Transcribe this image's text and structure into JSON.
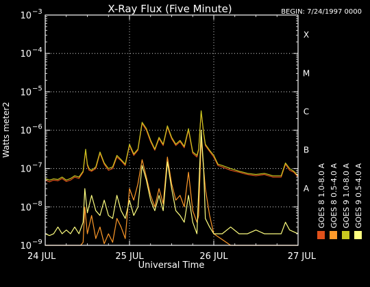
{
  "chart_data": {
    "type": "line",
    "title": "X-Ray Flux (Five Minute)",
    "begin_label": "BEGIN: 7/24/1997 0000",
    "xlabel": "Universal Time",
    "ylabel": "Watts meter2",
    "y_scale": "log",
    "ylim": [
      1e-09,
      0.001
    ],
    "xlim": [
      0,
      3
    ],
    "x_unit": "days since 1997-07-24 00:00 UT",
    "x_ticks": [
      {
        "x": 0,
        "label": "24 JUL"
      },
      {
        "x": 1,
        "label": "25 JUL"
      },
      {
        "x": 2,
        "label": "26 JUL"
      },
      {
        "x": 3,
        "label": "27 JUL"
      }
    ],
    "y_ticks": [
      {
        "exp": -9,
        "base": "10",
        "sup": "−9"
      },
      {
        "exp": -8,
        "base": "10",
        "sup": "−8"
      },
      {
        "exp": -7,
        "base": "10",
        "sup": "−7"
      },
      {
        "exp": -6,
        "base": "10",
        "sup": "−6"
      },
      {
        "exp": -5,
        "base": "10",
        "sup": "−5"
      },
      {
        "exp": -4,
        "base": "10",
        "sup": "−4"
      },
      {
        "exp": -3,
        "base": "10",
        "sup": "−3"
      }
    ],
    "flare_classes": [
      {
        "label": "A",
        "exp": -8
      },
      {
        "label": "B",
        "exp": -7
      },
      {
        "label": "C",
        "exp": -6
      },
      {
        "label": "M",
        "exp": -5
      },
      {
        "label": "X",
        "exp": -4
      }
    ],
    "vertical_dotted": [
      1,
      2
    ],
    "horizontal_dotted": [
      -8,
      -7,
      -6,
      -5,
      -4
    ],
    "series": [
      {
        "name": "GOES 8 1.0-8.0 A",
        "color": "#e0501a",
        "x": [
          0,
          0.05,
          0.1,
          0.15,
          0.2,
          0.25,
          0.3,
          0.35,
          0.4,
          0.45,
          0.48,
          0.5,
          0.52,
          0.55,
          0.6,
          0.65,
          0.7,
          0.75,
          0.8,
          0.85,
          0.9,
          0.95,
          1.0,
          1.05,
          1.1,
          1.15,
          1.2,
          1.25,
          1.3,
          1.35,
          1.4,
          1.45,
          1.5,
          1.55,
          1.6,
          1.65,
          1.7,
          1.75,
          1.8,
          1.82,
          1.85,
          1.88,
          1.9,
          1.95,
          2.0,
          2.05,
          2.1,
          2.2,
          2.3,
          2.4,
          2.5,
          2.6,
          2.7,
          2.8,
          2.85,
          2.9,
          2.95,
          3.0
        ],
        "y": [
          5e-08,
          4.5e-08,
          5e-08,
          4.8e-08,
          5.5e-08,
          4.6e-08,
          5e-08,
          6e-08,
          5.5e-08,
          8e-08,
          3e-07,
          1.2e-07,
          9e-08,
          8.5e-08,
          1e-07,
          2.5e-07,
          1.3e-07,
          9e-08,
          1e-07,
          2e-07,
          1.6e-07,
          1.2e-07,
          4e-07,
          2.2e-07,
          3e-07,
          1.5e-06,
          1e-06,
          5e-07,
          3e-07,
          6e-07,
          4e-07,
          1.2e-06,
          6e-07,
          4e-07,
          5e-07,
          3.5e-07,
          1e-06,
          2.5e-07,
          2e-07,
          3e-07,
          3e-06,
          8e-07,
          4e-07,
          2.8e-07,
          2e-07,
          1.2e-07,
          1.1e-07,
          9e-08,
          8e-08,
          7e-08,
          6.5e-08,
          7e-08,
          6e-08,
          6e-08,
          1.3e-07,
          9e-08,
          8e-08,
          6e-08
        ]
      },
      {
        "name": "GOES 8 0.5-4.0 A",
        "color": "#ff9a2a",
        "x": [
          0,
          0.3,
          0.42,
          0.45,
          0.47,
          0.5,
          0.55,
          0.6,
          0.65,
          0.7,
          0.75,
          0.8,
          0.85,
          0.9,
          0.95,
          1.0,
          1.05,
          1.1,
          1.15,
          1.2,
          1.25,
          1.3,
          1.35,
          1.4,
          1.45,
          1.5,
          1.55,
          1.6,
          1.65,
          1.7,
          1.75,
          1.8,
          1.82,
          1.85,
          1.88,
          1.9,
          1.95,
          2.0,
          2.2,
          2.5,
          2.8,
          3.0
        ],
        "y": [
          1e-09,
          1e-09,
          1e-09,
          1.2e-09,
          1e-08,
          2e-09,
          6e-09,
          1.5e-09,
          3e-09,
          1.1e-09,
          2e-09,
          1.2e-09,
          5e-09,
          3e-09,
          1.5e-09,
          3e-08,
          1.5e-08,
          4e-08,
          1.7e-07,
          6e-08,
          2e-08,
          1e-08,
          3e-08,
          1.2e-08,
          2e-07,
          4e-08,
          1.5e-08,
          2e-08,
          1e-08,
          8e-08,
          8e-09,
          4e-09,
          6e-09,
          6e-07,
          1e-07,
          3e-08,
          6e-09,
          2e-09,
          1e-09,
          1e-09,
          1e-09,
          1e-09
        ]
      },
      {
        "name": "GOES 9 1.0-8.0 A",
        "color": "#c8c820",
        "x": [
          0,
          0.05,
          0.1,
          0.15,
          0.2,
          0.25,
          0.3,
          0.35,
          0.4,
          0.45,
          0.48,
          0.5,
          0.52,
          0.55,
          0.6,
          0.65,
          0.7,
          0.75,
          0.8,
          0.85,
          0.9,
          0.95,
          1.0,
          1.05,
          1.1,
          1.15,
          1.2,
          1.25,
          1.3,
          1.35,
          1.4,
          1.45,
          1.5,
          1.55,
          1.6,
          1.65,
          1.7,
          1.75,
          1.8,
          1.82,
          1.85,
          1.88,
          1.9,
          1.95,
          2.0,
          2.05,
          2.1,
          2.2,
          2.3,
          2.4,
          2.5,
          2.6,
          2.7,
          2.8,
          2.85,
          2.9,
          2.95,
          3.0
        ],
        "y": [
          5.5e-08,
          5e-08,
          5.4e-08,
          5.2e-08,
          6e-08,
          5e-08,
          5.5e-08,
          6.5e-08,
          6e-08,
          8.5e-08,
          3.2e-07,
          1.3e-07,
          1e-07,
          9e-08,
          1.1e-07,
          2.7e-07,
          1.4e-07,
          1e-07,
          1.1e-07,
          2.2e-07,
          1.7e-07,
          1.3e-07,
          4.3e-07,
          2.4e-07,
          3.2e-07,
          1.6e-06,
          1.1e-06,
          5.5e-07,
          3.2e-07,
          6.5e-07,
          4.3e-07,
          1.3e-06,
          6.5e-07,
          4.3e-07,
          5.4e-07,
          3.8e-07,
          1.1e-06,
          2.7e-07,
          2.2e-07,
          3.2e-07,
          3.2e-06,
          8.5e-07,
          4.3e-07,
          3e-07,
          2.2e-07,
          1.3e-07,
          1.2e-07,
          1e-07,
          8.5e-08,
          7.5e-08,
          7e-08,
          7.5e-08,
          6.5e-08,
          6.5e-08,
          1.4e-07,
          1e-07,
          8.5e-08,
          6.5e-08
        ]
      },
      {
        "name": "GOES 9 0.5-4.0 A",
        "color": "#ffff80",
        "x": [
          0,
          0.05,
          0.1,
          0.15,
          0.2,
          0.25,
          0.3,
          0.35,
          0.4,
          0.45,
          0.47,
          0.5,
          0.55,
          0.6,
          0.65,
          0.7,
          0.75,
          0.8,
          0.85,
          0.9,
          0.95,
          1.0,
          1.05,
          1.1,
          1.15,
          1.2,
          1.25,
          1.3,
          1.35,
          1.4,
          1.45,
          1.5,
          1.55,
          1.6,
          1.65,
          1.7,
          1.75,
          1.8,
          1.85,
          1.88,
          1.9,
          1.95,
          2.0,
          2.1,
          2.2,
          2.3,
          2.4,
          2.5,
          2.6,
          2.7,
          2.8,
          2.85,
          2.9,
          3.0
        ],
        "y": [
          2e-09,
          1.8e-09,
          2e-09,
          3e-09,
          2e-09,
          2.5e-09,
          2e-09,
          3e-09,
          2e-09,
          4e-09,
          3e-08,
          7e-09,
          2e-08,
          8e-09,
          6e-09,
          1.5e-08,
          6e-09,
          5e-09,
          2e-08,
          8e-09,
          5e-09,
          1.5e-08,
          6e-09,
          1e-08,
          1.2e-07,
          5e-08,
          1.5e-08,
          8e-09,
          2e-08,
          8e-09,
          1.5e-07,
          3e-08,
          8e-09,
          6e-09,
          4e-09,
          2e-08,
          4e-09,
          2e-09,
          1e-06,
          1e-07,
          5e-09,
          3e-09,
          2e-09,
          2e-09,
          3e-09,
          2e-09,
          2e-09,
          2.5e-09,
          2e-09,
          2e-09,
          2e-09,
          4e-09,
          2.5e-09,
          2e-09
        ]
      }
    ]
  }
}
